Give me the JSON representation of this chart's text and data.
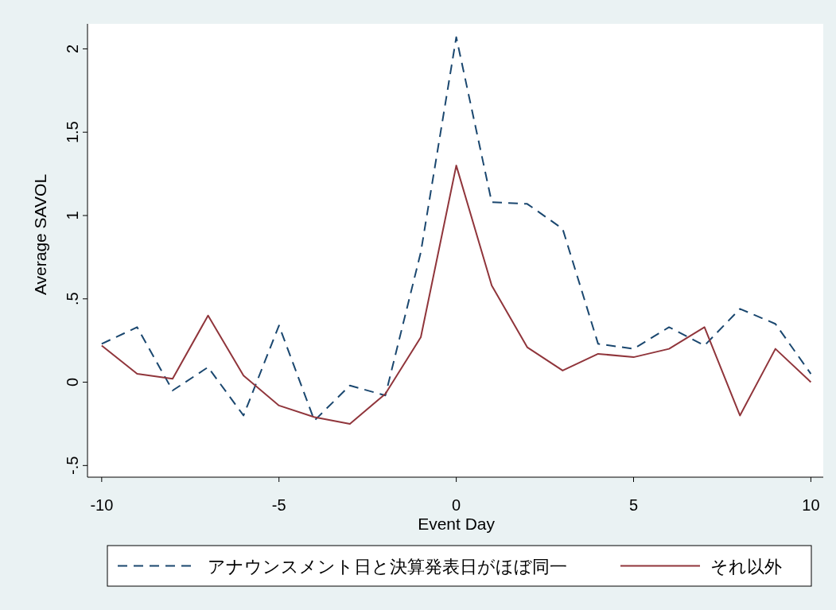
{
  "chart_data": {
    "type": "line",
    "xlabel": "Event Day",
    "ylabel": "Average SAVOL",
    "x": [
      -10,
      -9,
      -8,
      -7,
      -6,
      -5,
      -4,
      -3,
      -2,
      -1,
      0,
      1,
      2,
      3,
      4,
      5,
      6,
      7,
      8,
      9,
      10
    ],
    "xlim": [
      -10.4,
      10.35
    ],
    "xticks": [
      -10,
      -5,
      0,
      5,
      10
    ],
    "ylim": [
      -0.57,
      2.15
    ],
    "yticks": [
      {
        "value": -0.5,
        "label": "-.5"
      },
      0,
      {
        "value": 0.5,
        "label": ".5"
      },
      1,
      1.5,
      2
    ],
    "grid": false,
    "legend": "bottom",
    "marker": "none",
    "series": [
      {
        "name": "アナウンスメント日と決算発表日がほぼ同一",
        "color": "#1a476f",
        "line_style": "dashed",
        "values": [
          0.23,
          0.33,
          -0.05,
          0.09,
          -0.2,
          0.34,
          -0.23,
          -0.02,
          -0.08,
          0.78,
          2.07,
          1.08,
          1.07,
          0.92,
          0.23,
          0.2,
          0.33,
          0.22,
          0.44,
          0.35,
          0.05
        ]
      },
      {
        "name": "それ以外",
        "color": "#90353b",
        "line_style": "solid",
        "values": [
          0.22,
          0.05,
          0.02,
          0.4,
          0.04,
          -0.14,
          -0.21,
          -0.25,
          -0.07,
          0.27,
          1.3,
          0.58,
          0.21,
          0.07,
          0.17,
          0.15,
          0.2,
          0.33,
          -0.2,
          0.2,
          0.0
        ]
      }
    ]
  }
}
